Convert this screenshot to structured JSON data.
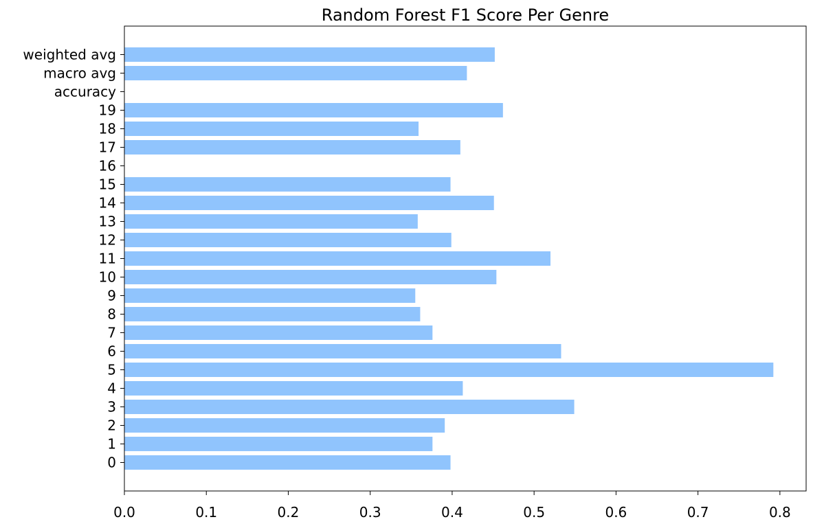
{
  "chart_data": {
    "type": "bar",
    "orientation": "horizontal",
    "title": "Random Forest F1 Score Per Genre",
    "xlabel": "",
    "ylabel": "",
    "xlim": [
      0,
      0.832
    ],
    "xticks": [
      "0.0",
      "0.1",
      "0.2",
      "0.3",
      "0.4",
      "0.5",
      "0.6",
      "0.7",
      "0.8"
    ],
    "categories": [
      "0",
      "1",
      "2",
      "3",
      "4",
      "5",
      "6",
      "7",
      "8",
      "9",
      "10",
      "11",
      "12",
      "13",
      "14",
      "15",
      "16",
      "17",
      "18",
      "19",
      "accuracy",
      "macro avg",
      "weighted avg"
    ],
    "values": [
      0.398,
      0.376,
      0.391,
      0.549,
      0.413,
      0.792,
      0.533,
      0.376,
      0.361,
      0.355,
      0.454,
      0.52,
      0.399,
      0.358,
      0.451,
      0.398,
      0.0,
      0.41,
      0.359,
      0.462,
      0.0,
      0.418,
      0.452
    ],
    "bar_color": "#90c4fd",
    "grid": false,
    "legend": "none"
  }
}
